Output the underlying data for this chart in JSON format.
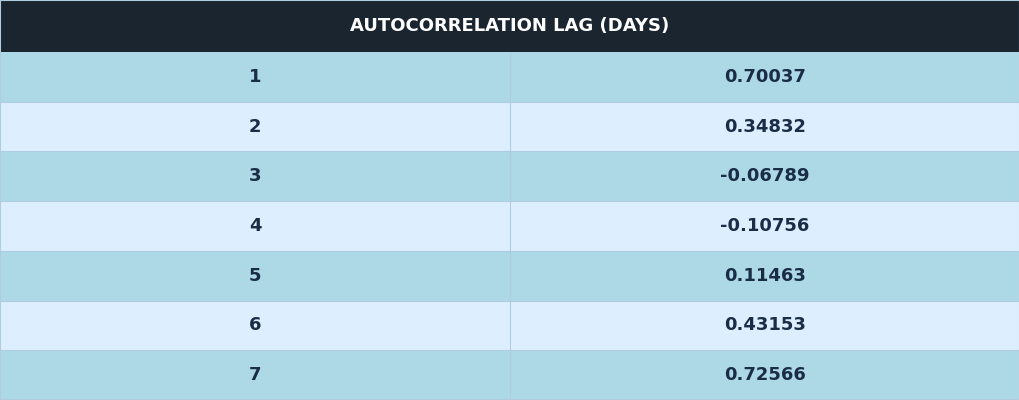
{
  "title": "AUTOCORRELATION LAG (DAYS)",
  "header_bg": "#1a2530",
  "header_text_color": "#ffffff",
  "title_fontsize": 13,
  "rows": [
    {
      "lag": "1",
      "value": "0.70037"
    },
    {
      "lag": "2",
      "value": "0.34832"
    },
    {
      "lag": "3",
      "value": "-0.06789"
    },
    {
      "lag": "4",
      "value": "-0.10756"
    },
    {
      "lag": "5",
      "value": "0.11463"
    },
    {
      "lag": "6",
      "value": "0.43153"
    },
    {
      "lag": "7",
      "value": "0.72566"
    }
  ],
  "row_colors_odd": "#add8e6",
  "row_colors_even": "#ddeeff",
  "row_text_color": "#1a2d47",
  "cell_fontsize": 13,
  "grid_color": "#b0cce0",
  "col_split": 0.5
}
